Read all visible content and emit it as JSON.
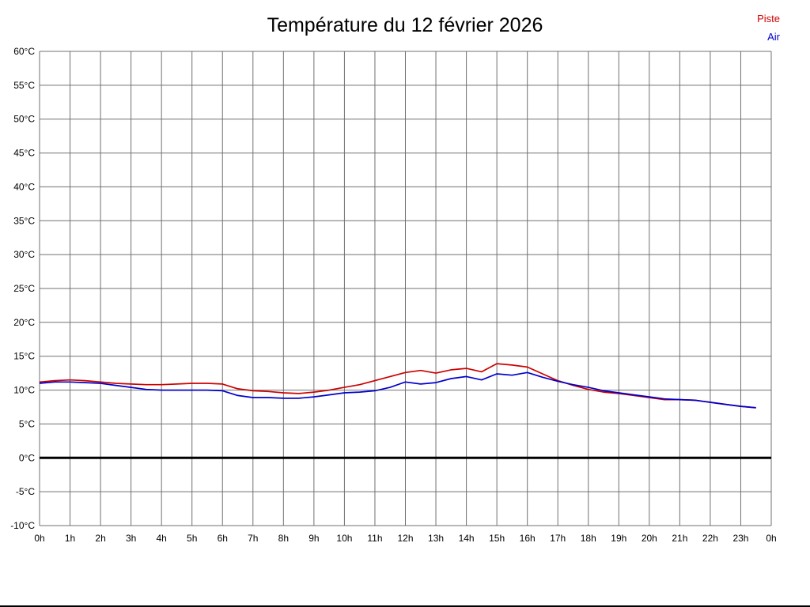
{
  "chart_data": {
    "type": "line",
    "title": "Température du 12 février 2026",
    "xlabel": "",
    "ylabel": "",
    "xlim": [
      0,
      24
    ],
    "ylim": [
      -10,
      60
    ],
    "grid": true,
    "grid_color": "#707070",
    "zero_line": {
      "value": 0,
      "color": "#000000",
      "width": 3
    },
    "x_tick_labels": [
      "0h",
      "1h",
      "2h",
      "3h",
      "4h",
      "5h",
      "6h",
      "7h",
      "8h",
      "9h",
      "10h",
      "11h",
      "12h",
      "13h",
      "14h",
      "15h",
      "16h",
      "17h",
      "18h",
      "19h",
      "20h",
      "21h",
      "22h",
      "23h",
      "0h"
    ],
    "y_tick_values": [
      -10,
      -5,
      0,
      5,
      10,
      15,
      20,
      25,
      30,
      35,
      40,
      45,
      50,
      55,
      60
    ],
    "y_tick_labels": [
      "-10°C",
      "-5°C",
      "0°C",
      "5°C",
      "10°C",
      "15°C",
      "20°C",
      "25°C",
      "30°C",
      "35°C",
      "40°C",
      "45°C",
      "50°C",
      "55°C",
      "60°C"
    ],
    "legend": {
      "position": "top-right",
      "entries": [
        {
          "label": "Piste",
          "color": "#cc0000"
        },
        {
          "label": "Air",
          "color": "#0000cc"
        }
      ]
    },
    "x": [
      0,
      0.5,
      1,
      1.5,
      2,
      2.5,
      3,
      3.5,
      4,
      4.5,
      5,
      5.5,
      6,
      6.5,
      7,
      7.5,
      8,
      8.5,
      9,
      9.5,
      10,
      10.5,
      11,
      11.5,
      12,
      12.5,
      13,
      13.5,
      14,
      14.5,
      15,
      15.5,
      16,
      16.5,
      17,
      17.5,
      18,
      18.5,
      19,
      19.5,
      20,
      20.5,
      21,
      21.5,
      22,
      22.5,
      23,
      23.5
    ],
    "series": [
      {
        "name": "Piste",
        "color": "#cc0000",
        "values": [
          11.2,
          11.4,
          11.5,
          11.4,
          11.2,
          11.0,
          10.9,
          10.8,
          10.8,
          10.9,
          11.0,
          11.0,
          10.9,
          10.2,
          9.9,
          9.8,
          9.6,
          9.5,
          9.7,
          10.0,
          10.4,
          10.8,
          11.4,
          12.0,
          12.6,
          12.9,
          12.5,
          13.0,
          13.2,
          12.7,
          13.9,
          13.7,
          13.4,
          12.4,
          11.4,
          10.7,
          10.1,
          9.7,
          9.5,
          9.2,
          8.9,
          8.6,
          8.6,
          8.5,
          8.2,
          7.9,
          7.6,
          7.4
        ]
      },
      {
        "name": "Air",
        "color": "#0000cc",
        "values": [
          11.0,
          11.2,
          11.2,
          11.1,
          11.0,
          10.7,
          10.4,
          10.1,
          10.0,
          10.0,
          10.0,
          10.0,
          9.9,
          9.2,
          8.9,
          8.9,
          8.8,
          8.8,
          9.0,
          9.3,
          9.6,
          9.7,
          9.9,
          10.4,
          11.2,
          10.9,
          11.1,
          11.7,
          12.0,
          11.5,
          12.4,
          12.2,
          12.6,
          11.9,
          11.3,
          10.8,
          10.4,
          9.9,
          9.6,
          9.3,
          9.0,
          8.7,
          8.6,
          8.5,
          8.2,
          7.9,
          7.6,
          7.4
        ]
      }
    ]
  }
}
